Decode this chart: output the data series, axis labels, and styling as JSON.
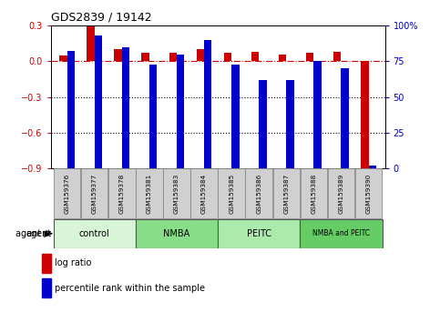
{
  "title": "GDS2839 / 19142",
  "samples": [
    "GSM159376",
    "GSM159377",
    "GSM159378",
    "GSM159381",
    "GSM159383",
    "GSM159384",
    "GSM159385",
    "GSM159386",
    "GSM159387",
    "GSM159388",
    "GSM159389",
    "GSM159390"
  ],
  "log_ratio": [
    0.05,
    0.3,
    0.1,
    0.07,
    0.07,
    0.1,
    0.07,
    0.08,
    0.06,
    0.07,
    0.08,
    -0.92
  ],
  "percentile_rank": [
    82,
    93,
    85,
    73,
    80,
    90,
    73,
    62,
    62,
    75,
    70,
    2
  ],
  "groups": [
    {
      "label": "control",
      "start": 0,
      "end": 3,
      "color": "#d8f5d8"
    },
    {
      "label": "NMBA",
      "start": 3,
      "end": 6,
      "color": "#88dd88"
    },
    {
      "label": "PEITC",
      "start": 6,
      "end": 9,
      "color": "#aaeaaa"
    },
    {
      "label": "NMBA and PEITC",
      "start": 9,
      "end": 12,
      "color": "#66cc66"
    }
  ],
  "ylim_left": [
    -0.9,
    0.3
  ],
  "ylim_right": [
    0,
    100
  ],
  "yticks_left": [
    0.3,
    0.0,
    -0.3,
    -0.6,
    -0.9
  ],
  "yticks_right": [
    100,
    75,
    50,
    25,
    0
  ],
  "bar_width": 0.28,
  "red_color": "#cc0000",
  "blue_color": "#0000cc",
  "hline_y": 0.0,
  "legend_items": [
    "log ratio",
    "percentile rank within the sample"
  ]
}
